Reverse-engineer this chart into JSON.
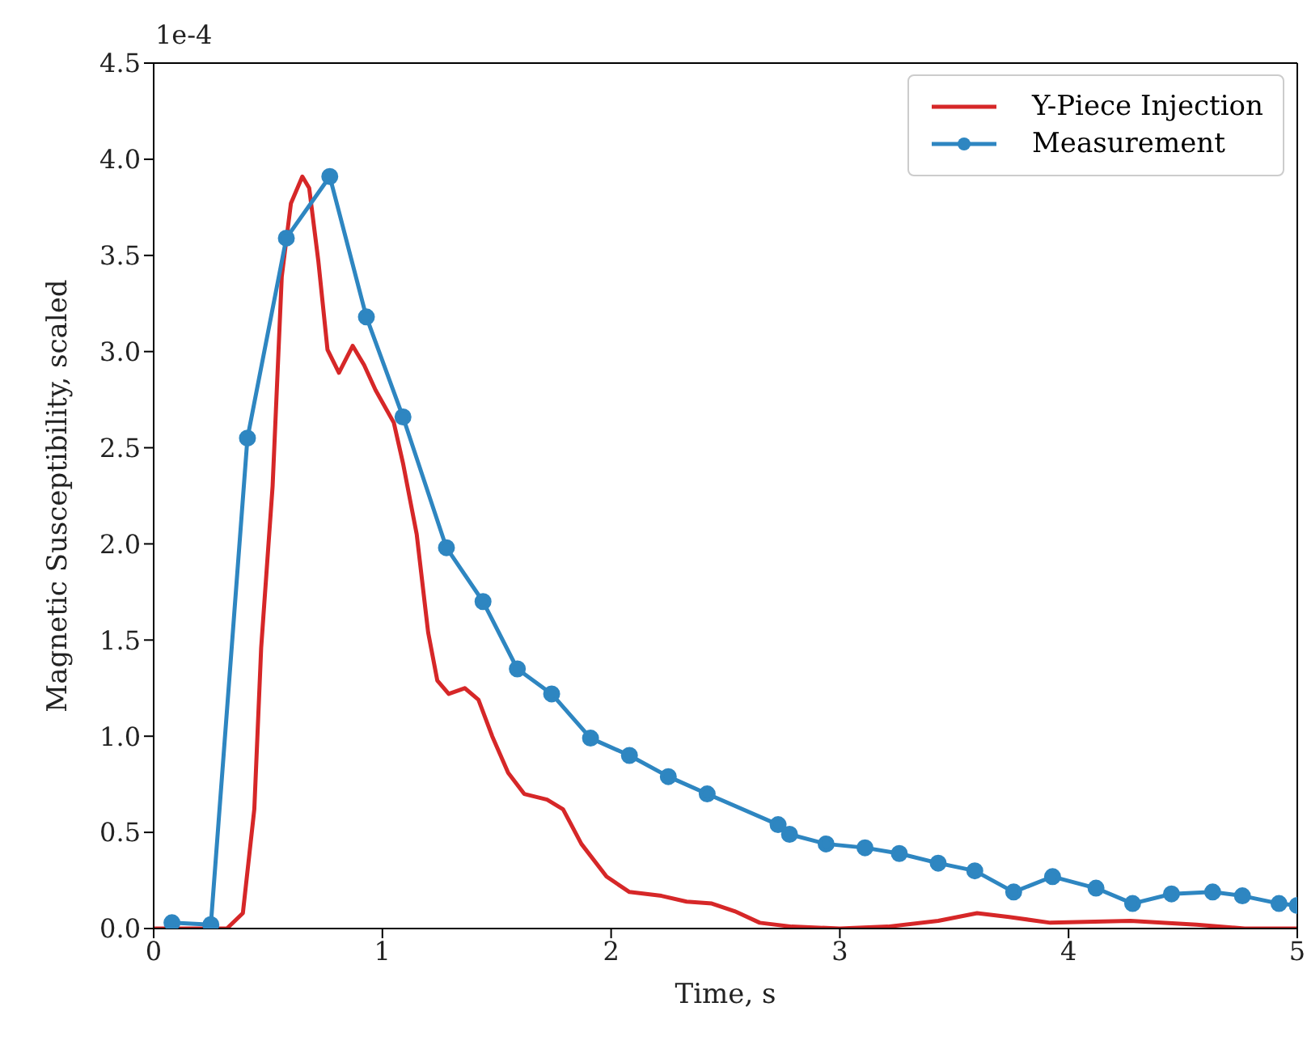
{
  "chart_data": {
    "type": "line",
    "xlabel": "Time, s",
    "ylabel": "Magnetic Susceptibility, scaled",
    "annotations": [
      "1e-4"
    ],
    "xlim": [
      0,
      5
    ],
    "xticks": [
      0,
      1,
      2,
      3,
      4,
      5
    ],
    "ylim": [
      0,
      4.5
    ],
    "yticks": [
      {
        "value": 0,
        "label": "0.0"
      },
      {
        "value": 0.5,
        "label": "0.5"
      },
      {
        "value": 1,
        "label": "1.0"
      },
      {
        "value": 1.5,
        "label": "1.5"
      },
      {
        "value": 2,
        "label": "2.0"
      },
      {
        "value": 2.5,
        "label": "2.5"
      },
      {
        "value": 3,
        "label": "3.0"
      },
      {
        "value": 3.5,
        "label": "3.5"
      },
      {
        "value": 4,
        "label": "4.0"
      },
      {
        "value": 4.5,
        "label": "4.5"
      }
    ],
    "legend": "top right",
    "line_style": "solid",
    "series": [
      {
        "name": "Y-Piece Injection",
        "color": "#d62728",
        "marker": "none",
        "x": [
          0,
          0.32,
          0.39,
          0.44,
          0.47,
          0.52,
          0.56,
          0.6,
          0.65,
          0.68,
          0.72,
          0.76,
          0.81,
          0.87,
          0.92,
          0.97,
          1.05,
          1.09,
          1.15,
          1.2,
          1.24,
          1.29,
          1.36,
          1.42,
          1.48,
          1.55,
          1.62,
          1.72,
          1.79,
          1.87,
          1.98,
          2.08,
          2.22,
          2.33,
          2.44,
          2.54,
          2.65,
          2.79,
          3.0,
          3.21,
          3.43,
          3.6,
          3.74,
          3.92,
          4.27,
          4.56,
          4.77,
          5.0
        ],
        "values": [
          0,
          0,
          0.08,
          0.62,
          1.46,
          2.3,
          3.39,
          3.77,
          3.91,
          3.85,
          3.47,
          3.01,
          2.89,
          3.03,
          2.93,
          2.8,
          2.63,
          2.42,
          2.05,
          1.54,
          1.29,
          1.22,
          1.25,
          1.19,
          1.0,
          0.81,
          0.7,
          0.67,
          0.62,
          0.44,
          0.27,
          0.19,
          0.17,
          0.14,
          0.13,
          0.09,
          0.03,
          0.01,
          0,
          0.01,
          0.04,
          0.08,
          0.06,
          0.03,
          0.04,
          0.02,
          0,
          0
        ]
      },
      {
        "name": "Measurement",
        "color": "#2e86c1",
        "marker": "circle",
        "x": [
          0.08,
          0.25,
          0.41,
          0.58,
          0.77,
          0.93,
          1.09,
          1.28,
          1.44,
          1.59,
          1.74,
          1.91,
          2.08,
          2.25,
          2.42,
          2.73,
          2.78,
          2.94,
          3.11,
          3.26,
          3.43,
          3.59,
          3.76,
          3.93,
          4.12,
          4.28,
          4.45,
          4.63,
          4.76,
          4.92,
          5.0
        ],
        "values": [
          0.03,
          0.02,
          2.55,
          3.59,
          3.91,
          3.18,
          2.66,
          1.98,
          1.7,
          1.35,
          1.22,
          0.99,
          0.9,
          0.79,
          0.7,
          0.54,
          0.49,
          0.44,
          0.42,
          0.39,
          0.34,
          0.3,
          0.19,
          0.27,
          0.21,
          0.13,
          0.18,
          0.19,
          0.17,
          0.13,
          0.12
        ]
      }
    ]
  }
}
